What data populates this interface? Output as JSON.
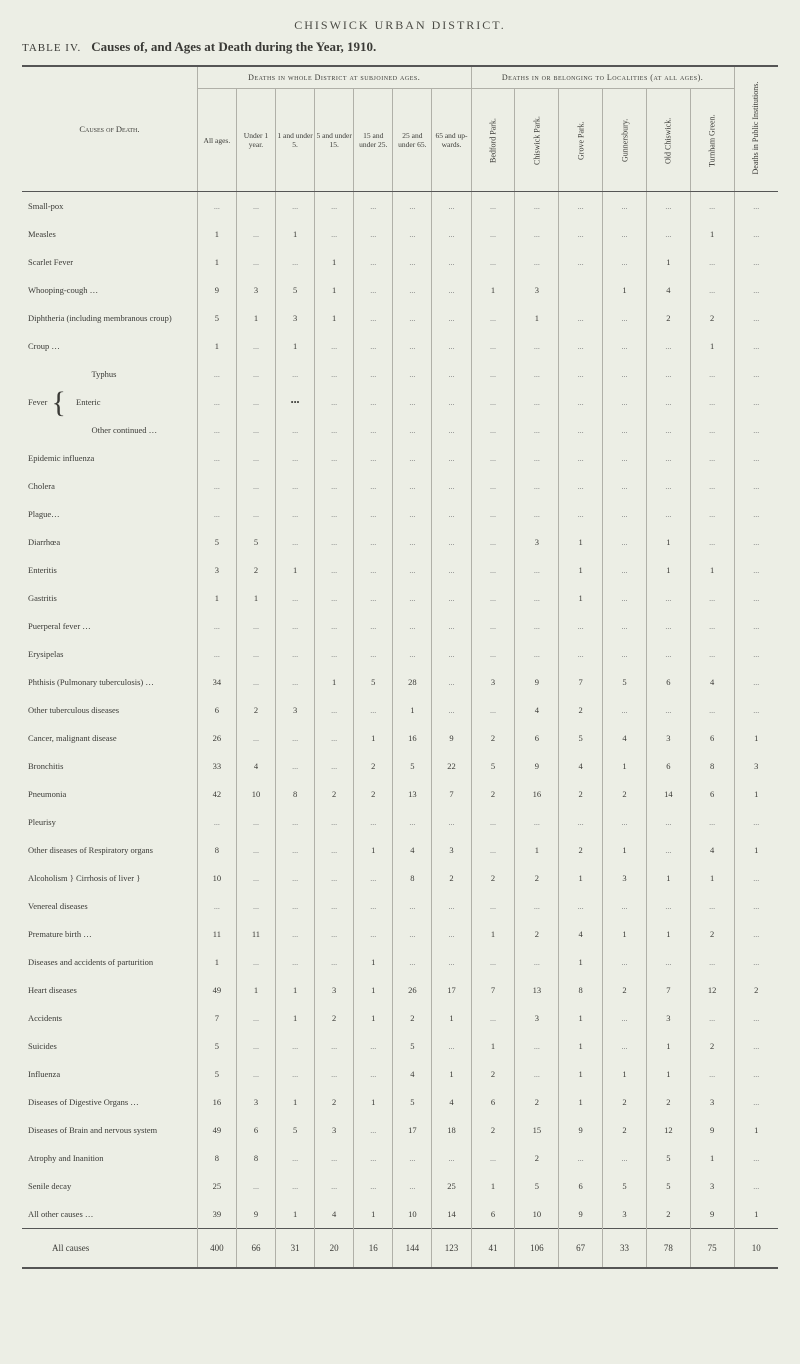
{
  "header": "CHISWICK URBAN DISTRICT.",
  "table_num": "TABLE IV.",
  "table_title": "Causes of, and Ages at Death during the Year, 1910.",
  "group_headers": {
    "ages": "Deaths in whole District at subjoined ages.",
    "localities": "Deaths in or belonging to Localities (at all ages).",
    "institutions": "Deaths in Public Institutions."
  },
  "causes_label": "Causes of Death.",
  "age_cols": [
    "All ages.",
    "Under 1 year.",
    "1 and under 5.",
    "5 and under 15.",
    "15 and under 25.",
    "25 and under 65.",
    "65 and up-wards."
  ],
  "loc_cols": [
    "Bedford Park.",
    "Chiswick Park.",
    "Grove Park.",
    "Gunnersbury.",
    "Old Chiswick.",
    "Turnham Green."
  ],
  "rows": [
    {
      "cause": "Small-pox",
      "v": [
        "...",
        "...",
        "...",
        "...",
        "...",
        "...",
        "...",
        "...",
        "...",
        "...",
        "...",
        "...",
        "...",
        "..."
      ]
    },
    {
      "cause": "Measles",
      "v": [
        "1",
        "...",
        "1",
        "...",
        "...",
        "...",
        "...",
        "...",
        "...",
        "...",
        "...",
        "...",
        "1",
        "..."
      ]
    },
    {
      "cause": "Scarlet Fever",
      "v": [
        "1",
        "...",
        "...",
        "1",
        "...",
        "...",
        "...",
        "...",
        "...",
        "...",
        "...",
        "1",
        "...",
        "..."
      ]
    },
    {
      "cause": "Whooping-cough …",
      "v": [
        "9",
        "3",
        "5",
        "1",
        "...",
        "...",
        "...",
        "1",
        "3",
        "",
        "1",
        "4",
        "...",
        "..."
      ]
    },
    {
      "cause": "Diphtheria (including membranous croup)",
      "v": [
        "5",
        "1",
        "3",
        "1",
        "...",
        "...",
        "...",
        "...",
        "1",
        "...",
        "...",
        "2",
        "2",
        "..."
      ]
    },
    {
      "cause": "Croup …",
      "v": [
        "1",
        "...",
        "1",
        "...",
        "...",
        "...",
        "...",
        "...",
        "...",
        "...",
        "...",
        "...",
        "1",
        "..."
      ]
    },
    {
      "cause": "Typhus",
      "indent": true,
      "prefix": "",
      "v": [
        "...",
        "...",
        "...",
        "...",
        "...",
        "...",
        "...",
        "...",
        "...",
        "...",
        "...",
        "...",
        "...",
        "..."
      ]
    },
    {
      "cause": "Enteric",
      "indent": true,
      "prefix": "Fever",
      "v": [
        "...",
        "...",
        "•••",
        "...",
        "...",
        "...",
        "...",
        "...",
        "...",
        "...",
        "...",
        "...",
        "...",
        "..."
      ]
    },
    {
      "cause": "Other continued …",
      "indent": true,
      "prefix": "",
      "v": [
        "...",
        "...",
        "...",
        "...",
        "...",
        "...",
        "...",
        "...",
        "...",
        "...",
        "...",
        "...",
        "...",
        "..."
      ]
    },
    {
      "cause": "Epidemic influenza",
      "v": [
        "...",
        "...",
        "...",
        "...",
        "...",
        "...",
        "...",
        "...",
        "...",
        "...",
        "...",
        "...",
        "...",
        "..."
      ]
    },
    {
      "cause": "Cholera",
      "v": [
        "...",
        "...",
        "...",
        "...",
        "...",
        "...",
        "...",
        "...",
        "...",
        "...",
        "...",
        "...",
        "...",
        "..."
      ]
    },
    {
      "cause": "Plague…",
      "v": [
        "...",
        "...",
        "...",
        "...",
        "...",
        "...",
        "...",
        "...",
        "...",
        "...",
        "...",
        "...",
        "...",
        "..."
      ]
    },
    {
      "cause": "Diarrhœa",
      "v": [
        "5",
        "5",
        "...",
        "...",
        "...",
        "...",
        "...",
        "...",
        "3",
        "1",
        "...",
        "1",
        "...",
        "..."
      ]
    },
    {
      "cause": "Enteritis",
      "v": [
        "3",
        "2",
        "1",
        "...",
        "...",
        "...",
        "...",
        "...",
        "...",
        "1",
        "...",
        "1",
        "1",
        "..."
      ]
    },
    {
      "cause": "Gastritis",
      "v": [
        "1",
        "1",
        "...",
        "...",
        "...",
        "...",
        "...",
        "...",
        "...",
        "1",
        "...",
        "...",
        "...",
        "..."
      ]
    },
    {
      "cause": "Puerperal fever …",
      "v": [
        "...",
        "...",
        "...",
        "...",
        "...",
        "...",
        "...",
        "...",
        "...",
        "...",
        "...",
        "...",
        "...",
        "..."
      ]
    },
    {
      "cause": "Erysipelas",
      "v": [
        "...",
        "...",
        "...",
        "...",
        "...",
        "...",
        "...",
        "...",
        "...",
        "...",
        "...",
        "...",
        "...",
        "..."
      ]
    },
    {
      "cause": "Phthisis (Pulmonary tuberculosis) …",
      "v": [
        "34",
        "...",
        "...",
        "1",
        "5",
        "28",
        "...",
        "3",
        "9",
        "7",
        "5",
        "6",
        "4",
        "..."
      ]
    },
    {
      "cause": "Other tuberculous diseases",
      "v": [
        "6",
        "2",
        "3",
        "...",
        "...",
        "1",
        "...",
        "...",
        "4",
        "2",
        "...",
        "...",
        "...",
        "..."
      ]
    },
    {
      "cause": "Cancer, malignant disease",
      "v": [
        "26",
        "...",
        "...",
        "...",
        "1",
        "16",
        "9",
        "2",
        "6",
        "5",
        "4",
        "3",
        "6",
        "1"
      ]
    },
    {
      "cause": "Bronchitis",
      "v": [
        "33",
        "4",
        "...",
        "...",
        "2",
        "5",
        "22",
        "5",
        "9",
        "4",
        "1",
        "6",
        "8",
        "3"
      ]
    },
    {
      "cause": "Pneumonia",
      "v": [
        "42",
        "10",
        "8",
        "2",
        "2",
        "13",
        "7",
        "2",
        "16",
        "2",
        "2",
        "14",
        "6",
        "1"
      ]
    },
    {
      "cause": "Pleurisy",
      "v": [
        "...",
        "...",
        "...",
        "...",
        "...",
        "...",
        "...",
        "...",
        "...",
        "...",
        "...",
        "...",
        "...",
        "..."
      ]
    },
    {
      "cause": "Other diseases of Respiratory organs",
      "v": [
        "8",
        "...",
        "...",
        "...",
        "1",
        "4",
        "3",
        "...",
        "1",
        "2",
        "1",
        "...",
        "4",
        "1"
      ]
    },
    {
      "cause": "Alcoholism } Cirrhosis of liver }",
      "v": [
        "10",
        "...",
        "...",
        "...",
        "...",
        "8",
        "2",
        "2",
        "2",
        "1",
        "3",
        "1",
        "1",
        "..."
      ]
    },
    {
      "cause": "Venereal diseases",
      "v": [
        "...",
        "...",
        "...",
        "...",
        "...",
        "...",
        "...",
        "...",
        "...",
        "...",
        "...",
        "...",
        "...",
        "..."
      ]
    },
    {
      "cause": "Premature birth …",
      "v": [
        "11",
        "11",
        "...",
        "...",
        "...",
        "...",
        "...",
        "1",
        "2",
        "4",
        "1",
        "1",
        "2",
        "..."
      ]
    },
    {
      "cause": "Diseases and accidents of parturition",
      "v": [
        "1",
        "...",
        "...",
        "...",
        "1",
        "...",
        "...",
        "...",
        "...",
        "1",
        "...",
        "...",
        "...",
        "..."
      ]
    },
    {
      "cause": "Heart diseases",
      "v": [
        "49",
        "1",
        "1",
        "3",
        "1",
        "26",
        "17",
        "7",
        "13",
        "8",
        "2",
        "7",
        "12",
        "2"
      ]
    },
    {
      "cause": "Accidents",
      "v": [
        "7",
        "...",
        "1",
        "2",
        "1",
        "2",
        "1",
        "...",
        "3",
        "1",
        "...",
        "3",
        "...",
        "..."
      ]
    },
    {
      "cause": "Suicides",
      "v": [
        "5",
        "...",
        "...",
        "...",
        "...",
        "5",
        "...",
        "1",
        "...",
        "1",
        "...",
        "1",
        "2",
        "..."
      ]
    },
    {
      "cause": "Influenza",
      "v": [
        "5",
        "...",
        "...",
        "...",
        "...",
        "4",
        "1",
        "2",
        "...",
        "1",
        "1",
        "1",
        "...",
        "..."
      ]
    },
    {
      "cause": "Diseases of Digestive Organs …",
      "v": [
        "16",
        "3",
        "1",
        "2",
        "1",
        "5",
        "4",
        "6",
        "2",
        "1",
        "2",
        "2",
        "3",
        "..."
      ]
    },
    {
      "cause": "Diseases of Brain and nervous system",
      "v": [
        "49",
        "6",
        "5",
        "3",
        "...",
        "17",
        "18",
        "2",
        "15",
        "9",
        "2",
        "12",
        "9",
        "1"
      ]
    },
    {
      "cause": "Atrophy and Inanition",
      "v": [
        "8",
        "8",
        "...",
        "...",
        "...",
        "...",
        "...",
        "...",
        "2",
        "...",
        "...",
        "5",
        "1",
        "..."
      ]
    },
    {
      "cause": "Senile decay",
      "v": [
        "25",
        "...",
        "...",
        "...",
        "...",
        "...",
        "25",
        "1",
        "5",
        "6",
        "5",
        "5",
        "3",
        "..."
      ]
    },
    {
      "cause": "All other causes …",
      "v": [
        "39",
        "9",
        "1",
        "4",
        "1",
        "10",
        "14",
        "6",
        "10",
        "9",
        "3",
        "2",
        "9",
        "1"
      ]
    }
  ],
  "totals": {
    "cause": "All causes",
    "v": [
      "400",
      "66",
      "31",
      "20",
      "16",
      "144",
      "123",
      "41",
      "106",
      "67",
      "33",
      "78",
      "75",
      "10"
    ]
  }
}
